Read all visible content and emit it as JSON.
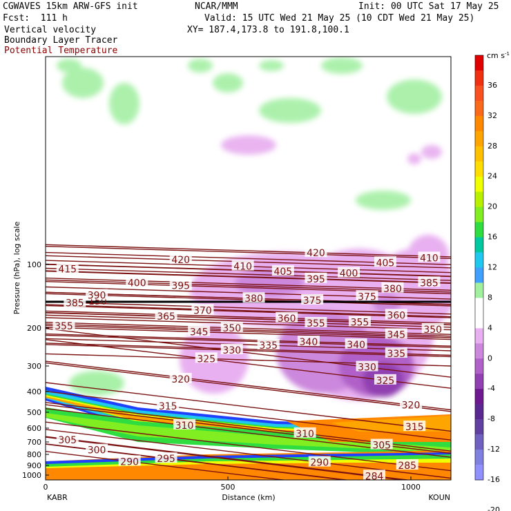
{
  "header": {
    "model": "CGWAVES 15km ARW-GFS init",
    "forecast": "Fcst:  111 h",
    "field1": "Vertical velocity",
    "field2": "Boundary Layer Tracer",
    "field3": "Potential Temperature",
    "center": "NCAR/MMM",
    "init": "Init: 00 UTC Sat 17 May 25",
    "valid": "Valid: 15 UTC Wed 21 May 25 (10 CDT Wed 21 May 25)",
    "xy": "XY= 187.4,173.8 to 191.8,100.1"
  },
  "chart_data": {
    "type": "heatmap",
    "ylabel": "Pressure (hPa), log scale",
    "xlabel": "Distance (km)",
    "x_ticks": [
      "0",
      "500",
      "1000"
    ],
    "y_ticks": [
      "100",
      "200",
      "300",
      "400",
      "500",
      "600",
      "700",
      "800",
      "900",
      "1000"
    ],
    "left_station": "KABR",
    "right_station": "KOUN",
    "colorbar": {
      "unit": "cm s",
      "unit_exp": "-1",
      "tick_labels": [
        "36",
        "32",
        "28",
        "24",
        "20",
        "16",
        "12",
        "8",
        "4",
        "0",
        "-4",
        "-8",
        "-12",
        "-16",
        "-20"
      ],
      "colors": [
        "#e00000",
        "#f03010",
        "#f85020",
        "#fb6a1a",
        "#ff8800",
        "#ffa500",
        "#ffc000",
        "#ffdd00",
        "#f0ff00",
        "#b8f000",
        "#80ee20",
        "#30dd40",
        "#00c8a0",
        "#20c8f0",
        "#40a0ff",
        "#a0f0a0",
        "#ffffff",
        "#ffffff",
        "#e8b0f0",
        "#cc88dd",
        "#b060c8",
        "#9040b0",
        "#70188f",
        "#5a2890",
        "#6040a0",
        "#7060c0",
        "#8080e0",
        "#9090ff"
      ]
    },
    "theta_contours": [
      {
        "label": "415",
        "p": 105,
        "x_km": 60
      },
      {
        "label": "420",
        "p": 95,
        "x_km": 370
      },
      {
        "label": "420",
        "p": 88,
        "x_km": 740
      },
      {
        "label": "410",
        "p": 102,
        "x_km": 540
      },
      {
        "label": "405",
        "p": 108,
        "x_km": 650
      },
      {
        "label": "405",
        "p": 98,
        "x_km": 930
      },
      {
        "label": "410",
        "p": 93,
        "x_km": 1050
      },
      {
        "label": "400",
        "p": 122,
        "x_km": 250
      },
      {
        "label": "400",
        "p": 110,
        "x_km": 830
      },
      {
        "label": "395",
        "p": 126,
        "x_km": 370
      },
      {
        "label": "395",
        "p": 117,
        "x_km": 740
      },
      {
        "label": "390",
        "p": 140,
        "x_km": 140
      },
      {
        "label": "385",
        "p": 122,
        "x_km": 1050
      },
      {
        "label": "385",
        "p": 152,
        "x_km": 80
      },
      {
        "label": "380",
        "p": 145,
        "x_km": 570
      },
      {
        "label": "380",
        "p": 130,
        "x_km": 950
      },
      {
        "label": "375",
        "p": 148,
        "x_km": 730
      },
      {
        "label": "375",
        "p": 142,
        "x_km": 880
      },
      {
        "label": "370",
        "p": 165,
        "x_km": 430
      },
      {
        "label": "365",
        "p": 176,
        "x_km": 330
      },
      {
        "label": "360",
        "p": 180,
        "x_km": 660
      },
      {
        "label": "360",
        "p": 174,
        "x_km": 960
      },
      {
        "label": "355",
        "p": 196,
        "x_km": 50
      },
      {
        "label": "355",
        "p": 190,
        "x_km": 740
      },
      {
        "label": "355",
        "p": 188,
        "x_km": 860
      },
      {
        "label": "350",
        "p": 200,
        "x_km": 510
      },
      {
        "label": "350",
        "p": 203,
        "x_km": 1060
      },
      {
        "label": "345",
        "p": 209,
        "x_km": 420
      },
      {
        "label": "345",
        "p": 215,
        "x_km": 960
      },
      {
        "label": "340",
        "p": 233,
        "x_km": 720
      },
      {
        "label": "340",
        "p": 240,
        "x_km": 850
      },
      {
        "label": "335",
        "p": 242,
        "x_km": 610
      },
      {
        "label": "335",
        "p": 265,
        "x_km": 960
      },
      {
        "label": "330",
        "p": 255,
        "x_km": 510
      },
      {
        "label": "330",
        "p": 307,
        "x_km": 880
      },
      {
        "label": "325",
        "p": 280,
        "x_km": 440
      },
      {
        "label": "325",
        "p": 355,
        "x_km": 930
      },
      {
        "label": "320",
        "p": 350,
        "x_km": 370
      },
      {
        "label": "320",
        "p": 465,
        "x_km": 1000
      },
      {
        "label": "315",
        "p": 470,
        "x_km": 335
      },
      {
        "label": "315",
        "p": 590,
        "x_km": 1010
      },
      {
        "label": "310",
        "p": 580,
        "x_km": 380
      },
      {
        "label": "310",
        "p": 635,
        "x_km": 710
      },
      {
        "label": "305",
        "p": 680,
        "x_km": 60
      },
      {
        "label": "305",
        "p": 720,
        "x_km": 920
      },
      {
        "label": "300",
        "p": 760,
        "x_km": 140
      },
      {
        "label": "295",
        "p": 835,
        "x_km": 330
      },
      {
        "label": "290",
        "p": 862,
        "x_km": 230
      },
      {
        "label": "290",
        "p": 870,
        "x_km": 750
      },
      {
        "label": "285",
        "p": 900,
        "x_km": 990
      },
      {
        "label": "284",
        "p": 1010,
        "x_km": 900
      }
    ],
    "tropopause_label": "150"
  }
}
